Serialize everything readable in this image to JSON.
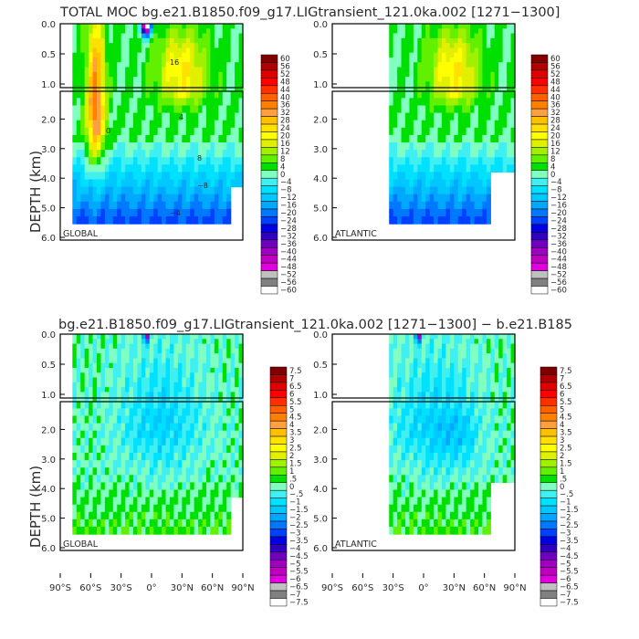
{
  "figure": {
    "title_top": "TOTAL MOC  bg.e21.B1850.f09_g17.LIGtransient_121.0ka.002  [1271−1300]",
    "title_bottom": "bg.e21.B1850.f09_g17.LIGtransient_121.0ka.002  [1271−1300]  −  b.e21.B185",
    "ylabel": "DEPTH (km)"
  },
  "chart_data": [
    {
      "type": "heatmap",
      "title": "TOTAL MOC  bg.e21.B1850.f09_g17.LIGtransient_121.0ka.002  [1271−1300]",
      "panels": [
        "GLOBAL",
        "ATLANTIC"
      ],
      "ylabel": "DEPTH (km)",
      "y_ticks_upper": [
        "0.0",
        "0.5",
        "1.0"
      ],
      "y_ticks_lower": [
        "2.0",
        "3.0",
        "4.0",
        "5.0",
        "6.0"
      ],
      "ylim": [
        0,
        6
      ],
      "colorbar_levels": [
        "60",
        "56",
        "52",
        "48",
        "44",
        "40",
        "36",
        "32",
        "28",
        "24",
        "20",
        "16",
        "12",
        "8",
        "4",
        "0",
        "−4",
        "−8",
        "−12",
        "−16",
        "−20",
        "−24",
        "−28",
        "−32",
        "−36",
        "−40",
        "−44",
        "−48",
        "−52",
        "−56",
        "−60"
      ],
      "contour_labels": [
        "16",
        "8",
        "4",
        "0",
        "−4",
        "−8"
      ],
      "grid": false
    },
    {
      "type": "heatmap",
      "title": "bg.e21.B1850.f09_g17.LIGtransient_121.0ka.002  [1271−1300]  −  b.e21.B185",
      "panels": [
        "GLOBAL",
        "ATLANTIC"
      ],
      "ylabel": "DEPTH (km)",
      "x_ticks": [
        "90°S",
        "60°S",
        "30°S",
        "0°",
        "30°N",
        "60°N",
        "90°N"
      ],
      "xlim": [
        -90,
        90
      ],
      "y_ticks_upper": [
        "0.0",
        "0.5",
        "1.0"
      ],
      "y_ticks_lower": [
        "2.0",
        "3.0",
        "4.0",
        "5.0",
        "6.0"
      ],
      "ylim": [
        0,
        6
      ],
      "colorbar_levels": [
        "7.5",
        "7",
        "6.5",
        "6",
        "5.5",
        "5",
        "4.5",
        "4",
        "3.5",
        "3",
        "2.5",
        "2",
        "1.5",
        "1",
        ".5",
        "0",
        "−.5",
        "−1",
        "−1.5",
        "−2",
        "−2.5",
        "−3",
        "−3.5",
        "−4",
        "−4.5",
        "−5",
        "−5.5",
        "−6",
        "−6.5",
        "−7",
        "−7.5"
      ],
      "grid": false
    }
  ],
  "colors": {
    "scale": [
      "#ffffff",
      "#808080",
      "#c0c0c0",
      "#e000e0",
      "#c000c0",
      "#a000c0",
      "#7000c0",
      "#3000c0",
      "#0000e0",
      "#0040ff",
      "#0078ff",
      "#00a8ff",
      "#00c8ff",
      "#00e0ff",
      "#40f0f0",
      "#80ffc0",
      "#00e000",
      "#60f000",
      "#a0f000",
      "#e0f000",
      "#ffff00",
      "#ffe000",
      "#ffc000",
      "#ffa040",
      "#ff8000",
      "#ff6000",
      "#ff3000",
      "#ff0000",
      "#e00000",
      "#b00000",
      "#800000"
    ]
  }
}
